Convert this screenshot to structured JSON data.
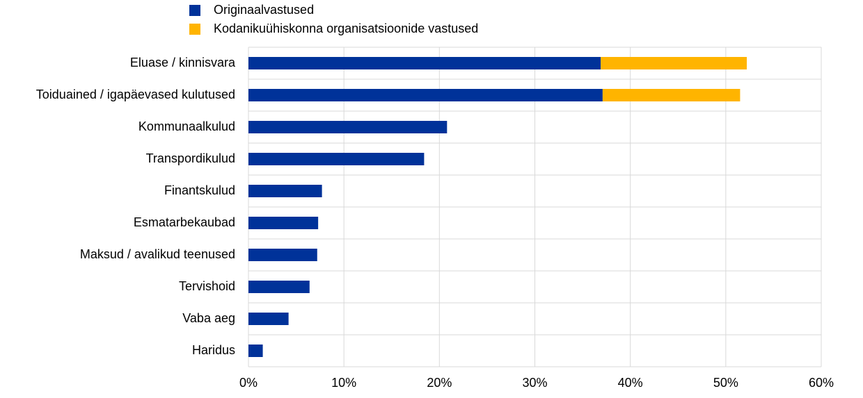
{
  "chart_data": {
    "type": "stacked_bar_horizontal",
    "categories": [
      "Eluase / kinnisvara",
      "Toiduained / igapäevased kulutused",
      "Kommunaalkulud",
      "Transpordikulud",
      "Finantskulud",
      "Esmatarbekaubad",
      "Maksud / avalikud teenused",
      "Tervishoid",
      "Vaba aeg",
      "Haridus"
    ],
    "series": [
      {
        "name": "Originaalvastused",
        "color": "#003299",
        "values": [
          36.9,
          37.1,
          20.8,
          18.4,
          7.7,
          7.3,
          7.2,
          6.4,
          4.2,
          1.5
        ]
      },
      {
        "name": "Kodanikuühiskonna organisatsioonide vastused",
        "color": "#ffb400",
        "values": [
          15.3,
          14.4,
          null,
          null,
          null,
          null,
          null,
          null,
          null,
          null
        ]
      }
    ],
    "xlim": [
      0,
      60
    ],
    "xticks": [
      {
        "value": 0,
        "label": "0%"
      },
      {
        "value": 10,
        "label": "10%"
      },
      {
        "value": 20,
        "label": "20%"
      },
      {
        "value": 30,
        "label": "30%"
      },
      {
        "value": 40,
        "label": "40%"
      },
      {
        "value": 50,
        "label": "50%"
      },
      {
        "value": 60,
        "label": "60%"
      }
    ],
    "grid": true
  }
}
